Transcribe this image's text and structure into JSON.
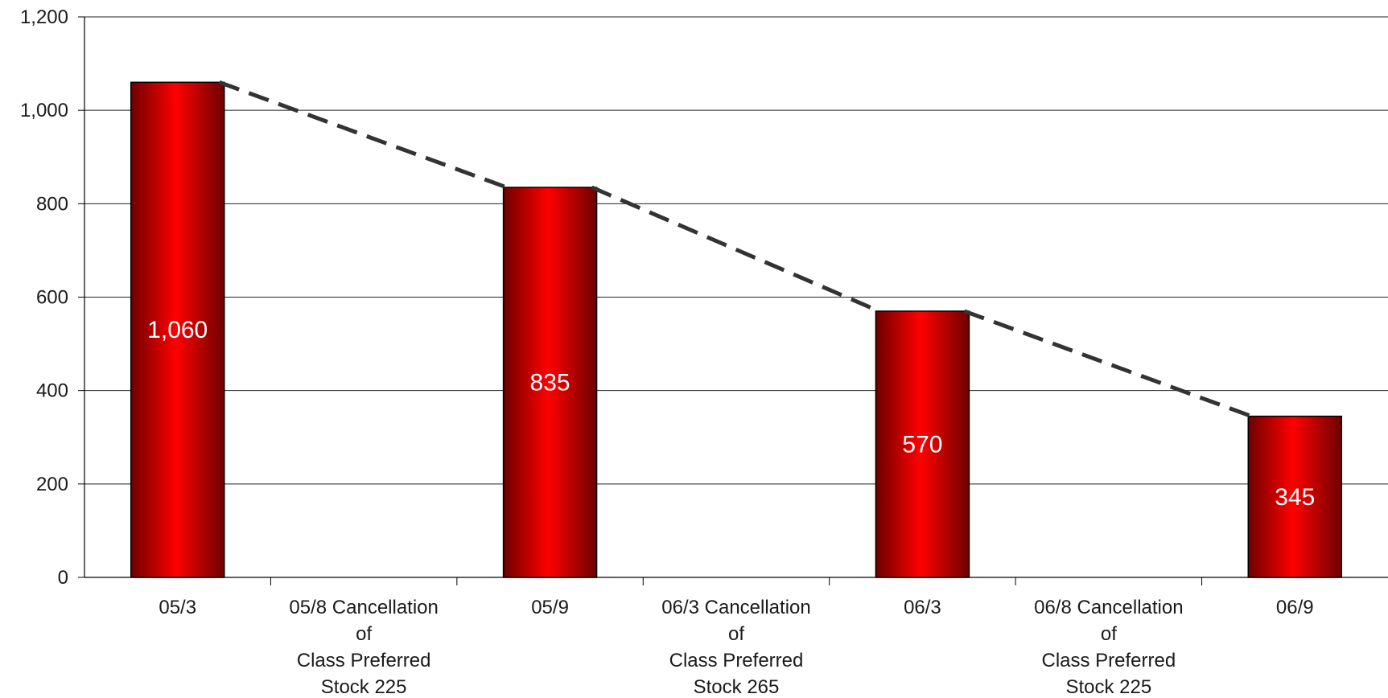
{
  "chart_data": {
    "type": "bar",
    "title": "",
    "xlabel": "",
    "ylabel": "",
    "ylim": [
      0,
      1200
    ],
    "yticks": [
      0,
      200,
      400,
      600,
      800,
      1000,
      1200
    ],
    "ytick_labels": [
      "0",
      "200",
      "400",
      "600",
      "800",
      "1,000",
      "1,200"
    ],
    "grid": true,
    "legend": "none",
    "categories": [
      [
        "05/3"
      ],
      [
        "05/8 Cancellation",
        "of",
        "Class    Preferred",
        "Stock    225"
      ],
      [
        "05/9"
      ],
      [
        "06/3 Cancellation",
        "of",
        "Class    Preferred",
        "Stock    265"
      ],
      [
        "06/3"
      ],
      [
        "06/8 Cancellation",
        "of",
        "Class    Preferred",
        "Stock    225"
      ],
      [
        "06/9"
      ]
    ],
    "values": [
      1060,
      null,
      835,
      null,
      570,
      null,
      345
    ],
    "value_labels": [
      "1,060",
      "",
      "835",
      "",
      "570",
      "",
      "345"
    ],
    "trend_line": {
      "style": "dashed",
      "points": [
        1060,
        835,
        570,
        345
      ]
    },
    "colors": {
      "bar_center": "#ff0000",
      "bar_edge": "#6e0000",
      "grid": "#222222",
      "trend": "#333333",
      "value_text": "#ffffff"
    }
  }
}
